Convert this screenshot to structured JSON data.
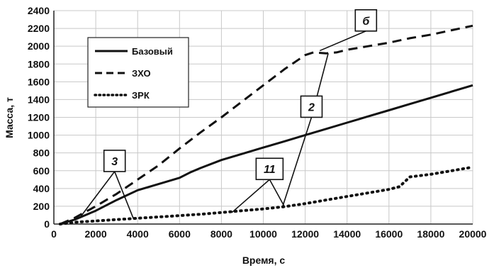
{
  "chart_data": {
    "type": "line",
    "xlabel": "Время, с",
    "ylabel": "Масса, т",
    "xlim": [
      0,
      20000
    ],
    "ylim": [
      0,
      2400
    ],
    "xticks": [
      "0",
      "2000",
      "4000",
      "6000",
      "8000",
      "10000",
      "12000",
      "14000",
      "16000",
      "18000",
      "20000"
    ],
    "yticks": [
      "0",
      "200",
      "400",
      "600",
      "800",
      "1000",
      "1200",
      "1400",
      "1600",
      "1800",
      "2000",
      "2200",
      "2400"
    ],
    "grid": true,
    "legend_position": "top-left",
    "series": [
      {
        "name": "Базовый",
        "style": "solid",
        "x": [
          300,
          1000,
          2000,
          3000,
          4000,
          5000,
          6000,
          6500,
          7000,
          8000,
          9000,
          10000,
          11000,
          12000,
          13000,
          14000,
          15000,
          16000,
          17000,
          18000,
          19000,
          20000
        ],
        "y": [
          0,
          50,
          150,
          270,
          380,
          450,
          520,
          580,
          630,
          720,
          790,
          860,
          930,
          1000,
          1070,
          1140,
          1210,
          1280,
          1350,
          1420,
          1490,
          1560
        ]
      },
      {
        "name": "ЗХО",
        "style": "dashed",
        "x": [
          300,
          1000,
          2000,
          3000,
          4000,
          5000,
          6000,
          7000,
          8000,
          9000,
          10000,
          11000,
          12000,
          12400,
          13000,
          13500,
          14000,
          15000,
          16000,
          17000,
          18000,
          19000,
          20000
        ],
        "y": [
          0,
          70,
          200,
          340,
          500,
          660,
          850,
          1030,
          1200,
          1380,
          1560,
          1740,
          1900,
          1930,
          1920,
          1930,
          1960,
          2000,
          2040,
          2090,
          2130,
          2180,
          2230
        ]
      },
      {
        "name": "ЗРК",
        "style": "dotted",
        "x": [
          300,
          1000,
          2000,
          3000,
          4000,
          5000,
          6000,
          7000,
          8000,
          9000,
          10000,
          11000,
          12000,
          13000,
          14000,
          15000,
          16000,
          16500,
          17000,
          18000,
          19000,
          20000
        ],
        "y": [
          0,
          20,
          35,
          50,
          65,
          80,
          95,
          110,
          130,
          150,
          170,
          195,
          230,
          270,
          310,
          350,
          390,
          420,
          530,
          560,
          600,
          640
        ]
      }
    ],
    "annotations": [
      {
        "label": "3",
        "box": [
          2900,
          710
        ],
        "targets": [
          [
            1300,
            90
          ],
          [
            3800,
            60
          ]
        ]
      },
      {
        "label": "б",
        "box": [
          14900,
          2290
        ],
        "targets": [
          [
            12700,
            1950
          ]
        ]
      },
      {
        "label": "2",
        "box": [
          12300,
          1320
        ],
        "targets": [
          [
            10900,
            180
          ],
          [
            13100,
            1920
          ]
        ]
      },
      {
        "label": "11",
        "box": [
          10300,
          620
        ],
        "targets": [
          [
            8500,
            130
          ],
          [
            11000,
            200
          ]
        ]
      }
    ]
  }
}
